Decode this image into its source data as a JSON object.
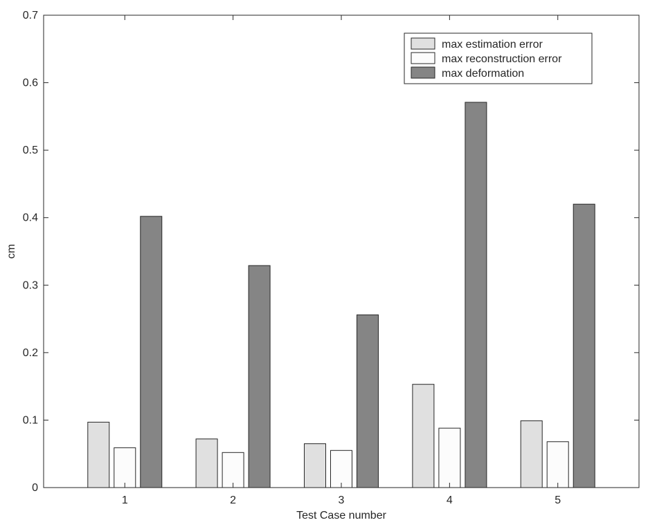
{
  "chart_data": {
    "type": "bar",
    "title": "",
    "xlabel": "Test Case number",
    "ylabel": "cm",
    "categories": [
      "1",
      "2",
      "3",
      "4",
      "5"
    ],
    "ylim": [
      0,
      0.7
    ],
    "yticks": [
      "0",
      "0.1",
      "0.2",
      "0.3",
      "0.4",
      "0.5",
      "0.6",
      "0.7"
    ],
    "yticks_values": [
      0,
      0.1,
      0.2,
      0.3,
      0.4,
      0.5,
      0.6,
      0.7
    ],
    "grid": false,
    "legend_position": "top-right",
    "series": [
      {
        "name": "max estimation error",
        "color": "#e0e0e0",
        "values": [
          0.097,
          0.072,
          0.065,
          0.153,
          0.099
        ]
      },
      {
        "name": "max reconstruction error",
        "color": "#fcfcfc",
        "values": [
          0.059,
          0.052,
          0.055,
          0.088,
          0.068
        ]
      },
      {
        "name": "max deformation",
        "color": "#858585",
        "values": [
          0.402,
          0.329,
          0.256,
          0.571,
          0.42
        ]
      }
    ]
  }
}
